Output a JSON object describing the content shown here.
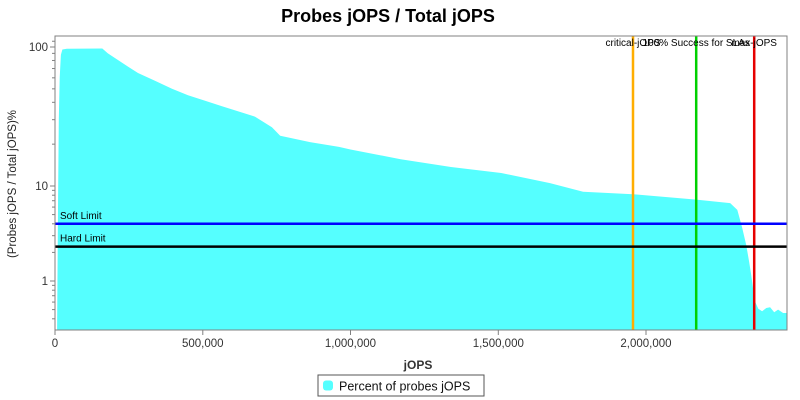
{
  "title": "Probes jOPS / Total jOPS",
  "legend": {
    "label": "Percent of probes jOPS",
    "marker_color": "#55FFFF"
  },
  "axes": {
    "x_label": "jOPS",
    "y_label": "(Probes jOPS / Total jOPS)%"
  },
  "chart_data": {
    "type": "area",
    "title": "Probes jOPS / Total jOPS",
    "xlabel": "jOPS",
    "ylabel": "(Probes jOPS / Total jOPS)%",
    "x_scale": "linear",
    "y_scale": "log",
    "xlim": [
      0,
      2477000
    ],
    "ylim": [
      0.3,
      120
    ],
    "grid": false,
    "legend_position": "bottom",
    "x_ticks": [
      0,
      500000,
      1000000,
      1500000,
      2000000
    ],
    "x_tick_labels": [
      "0",
      "500,000",
      "1,000,000",
      "1,500,000",
      "2,000,000"
    ],
    "y_ticks": [
      100,
      10,
      1
    ],
    "y_tick_labels": [
      "100",
      "10",
      "1"
    ],
    "y_minor_ticks": [
      110,
      90,
      80,
      70,
      60,
      50,
      40,
      30,
      20,
      9,
      8,
      7,
      6,
      5,
      4,
      3,
      2,
      0.9,
      0.8,
      0.7,
      0.6,
      0.5,
      0.4
    ],
    "series": [
      {
        "name": "Percent of probes jOPS",
        "color": "#55FFFF",
        "points": [
          [
            7000,
            0.32
          ],
          [
            10000,
            6
          ],
          [
            13000,
            30
          ],
          [
            16000,
            60
          ],
          [
            20000,
            88
          ],
          [
            25000,
            96
          ],
          [
            40000,
            97
          ],
          [
            160000,
            97.5
          ],
          [
            179000,
            90
          ],
          [
            227000,
            77
          ],
          [
            281000,
            65
          ],
          [
            339000,
            57
          ],
          [
            396000,
            50
          ],
          [
            450000,
            45
          ],
          [
            508000,
            41
          ],
          [
            565000,
            37.5
          ],
          [
            619000,
            34.5
          ],
          [
            677000,
            31.5
          ],
          [
            734000,
            26.5
          ],
          [
            762000,
            23
          ],
          [
            863000,
            20.7
          ],
          [
            961000,
            19.1
          ],
          [
            1000000,
            18.3
          ],
          [
            1170000,
            15.6
          ],
          [
            1340000,
            13.7
          ],
          [
            1510000,
            12.4
          ],
          [
            1675000,
            10.5
          ],
          [
            1787000,
            8.7
          ],
          [
            1956000,
            8.2
          ],
          [
            2170000,
            7.2
          ],
          [
            2285000,
            6.6
          ],
          [
            2309000,
            5.6
          ],
          [
            2325000,
            3.7
          ],
          [
            2339000,
            2.4
          ],
          [
            2349000,
            1.6
          ],
          [
            2356000,
            1.16
          ],
          [
            2363000,
            0.8
          ],
          [
            2370000,
            0.6
          ],
          [
            2380000,
            0.51
          ],
          [
            2393000,
            0.48
          ],
          [
            2407000,
            0.52
          ],
          [
            2420000,
            0.53
          ],
          [
            2434000,
            0.47
          ],
          [
            2447000,
            0.5
          ],
          [
            2464000,
            0.46
          ],
          [
            2477000,
            0.46
          ]
        ]
      }
    ],
    "v_markers": [
      {
        "label": "critical-jOPS",
        "x": 1956000,
        "color": "#FFAE00"
      },
      {
        "label": "100% Success for SLAs",
        "x": 2170000,
        "color": "#00D000"
      },
      {
        "label": "max-jOPS",
        "x": 2366000,
        "color": "#E60000"
      }
    ],
    "h_markers": [
      {
        "label": "Soft Limit",
        "y": 4.0,
        "color": "#0000FF"
      },
      {
        "label": "Hard Limit",
        "y": 2.3,
        "color": "#000000"
      }
    ]
  }
}
